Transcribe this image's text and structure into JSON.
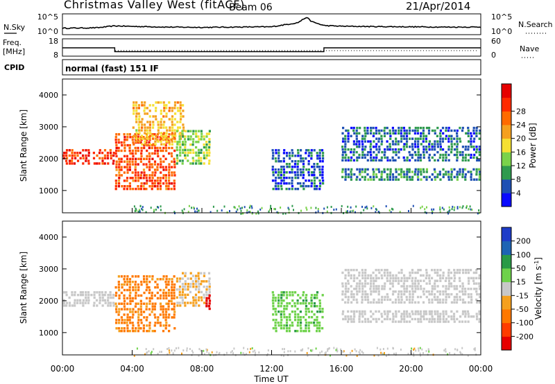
{
  "header": {
    "title": "Christmas Valley West (fitACF)",
    "beam": "Beam 06",
    "date": "21/Apr/2014"
  },
  "params": {
    "nsky": {
      "label": "N.Sky",
      "right_label": "N.Search",
      "y_ticks": [
        "10^5",
        "10^0"
      ],
      "right_ticks": [
        "10^5",
        "10^0"
      ]
    },
    "freq": {
      "label": "Freq.",
      "unit": "[MHz]",
      "right_label": "Nave",
      "y_ticks": [
        "18",
        "8"
      ],
      "right_ticks": [
        "60",
        "0"
      ]
    },
    "cpid": {
      "label": "CPID",
      "value": "normal (fast) 151 IF"
    }
  },
  "axes": {
    "xlabel": "Time UT",
    "ylabel": "Slant Range [km]",
    "x_ticks": [
      "00:00",
      "04:00",
      "08:00",
      "12:00",
      "16:00",
      "20:00",
      "00:00"
    ],
    "y_ticks": [
      "1000",
      "2000",
      "3000",
      "4000"
    ]
  },
  "colorbars": {
    "power": {
      "label": "Power [dB]",
      "ticks": [
        "4",
        "8",
        "12",
        "16",
        "20",
        "24",
        "28"
      ],
      "colors": [
        "#0a0aff",
        "#1e50b4",
        "#2f9a4e",
        "#7ad24a",
        "#f5e032",
        "#f5a01e",
        "#ff6a00",
        "#ff2a00",
        "#e60000"
      ]
    },
    "velocity": {
      "label_main": "Velocity [m s",
      "label_sup": "-1",
      "label_end": "]",
      "ticks": [
        "200",
        "100",
        "50",
        "15",
        "-15",
        "-50",
        "-100",
        "-200"
      ],
      "colors": [
        "#1e3cc8",
        "#1e64b4",
        "#2a9a46",
        "#6ed24a",
        "#c8c8c8",
        "#f5a01e",
        "#ff7800",
        "#ff3c00",
        "#e60000"
      ]
    }
  },
  "chart_data": [
    {
      "type": "line",
      "panel": "N.Sky / N.Search",
      "x_unit": "hours UT",
      "x": [
        0,
        2,
        3,
        4,
        6,
        8,
        10,
        12,
        13.5,
        14,
        14.3,
        15,
        16,
        18,
        20,
        22,
        24
      ],
      "series": [
        {
          "values": [
            30,
            40,
            120,
            90,
            60,
            50,
            60,
            70,
            800,
            20000,
            1500,
            150,
            100,
            80,
            70,
            60,
            60
          ]
        }
      ],
      "ylim": [
        1,
        100000
      ],
      "log_scale": true
    },
    {
      "type": "line",
      "panel": "Freq. / Nave",
      "x_unit": "hours UT",
      "series": [
        {
          "x": [
            0,
            3,
            3,
            15,
            15,
            24
          ],
          "values": [
            13,
            13,
            10.5,
            10.5,
            13,
            13
          ]
        }
      ],
      "ylim": [
        8,
        18
      ]
    },
    {
      "type": "heatmap",
      "panel": "Power [dB]",
      "x_unit": "hours UT",
      "y_unit": "km",
      "xlim": [
        0,
        24
      ],
      "ylim": [
        300,
        4500
      ],
      "bands": [
        {
          "t0": 0,
          "t1": 3,
          "r0": 1800,
          "r1": 2300,
          "value": 27
        },
        {
          "t0": 3,
          "t1": 6.5,
          "r0": 1000,
          "r1": 2800,
          "value": 25
        },
        {
          "t0": 4,
          "t1": 7,
          "r0": 2400,
          "r1": 3800,
          "value": 18
        },
        {
          "t0": 6.5,
          "t1": 8.5,
          "r0": 1800,
          "r1": 2900,
          "value": 13
        },
        {
          "t0": 12,
          "t1": 15,
          "r0": 1000,
          "r1": 2300,
          "value": 5
        },
        {
          "t0": 16,
          "t1": 24,
          "r0": 1300,
          "r1": 1700,
          "value": 8
        },
        {
          "t0": 16,
          "t1": 24,
          "r0": 1900,
          "r1": 3000,
          "value": 6
        }
      ]
    },
    {
      "type": "heatmap",
      "panel": "Velocity [m s-1]",
      "x_unit": "hours UT",
      "y_unit": "km",
      "xlim": [
        0,
        24
      ],
      "ylim": [
        300,
        4500
      ],
      "bands": [
        {
          "t0": 0,
          "t1": 3,
          "r0": 1800,
          "r1": 2300,
          "value": 0
        },
        {
          "t0": 3,
          "t1": 6.5,
          "r0": 1000,
          "r1": 2800,
          "value": -60
        },
        {
          "t0": 6.5,
          "t1": 8.5,
          "r0": 1800,
          "r1": 2900,
          "value": -20
        },
        {
          "t0": 8.2,
          "t1": 8.5,
          "r0": 1700,
          "r1": 2200,
          "value": -220
        },
        {
          "t0": 12,
          "t1": 15,
          "r0": 1000,
          "r1": 2300,
          "value": 40
        },
        {
          "t0": 16,
          "t1": 24,
          "r0": 1300,
          "r1": 1700,
          "value": 0
        },
        {
          "t0": 16,
          "t1": 24,
          "r0": 1900,
          "r1": 3000,
          "value": 0
        }
      ]
    }
  ]
}
